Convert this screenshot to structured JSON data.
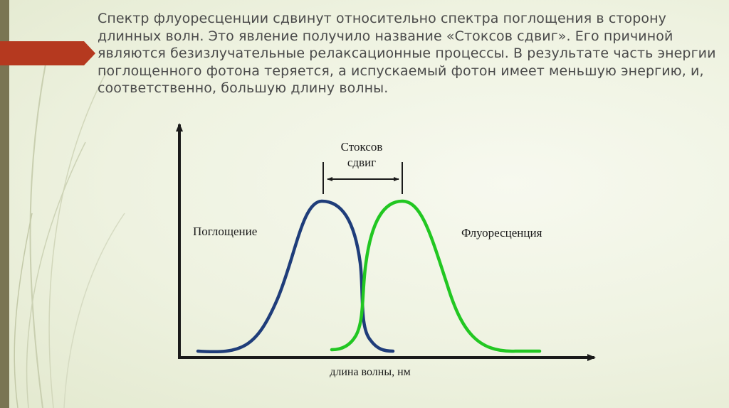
{
  "slide": {
    "paragraph": "Спектр флуоресценции сдвинут относительно спектра поглощения в сторону длинных волн. Это явление получило название «Стоксов сдвиг». Его причиной являются безизлучательные релаксационные процессы. В результате часть энергии поглощенного фотона теряется, а испускаемый фотон имеет меньшую энергию, и, соответственно, большую длину волны."
  },
  "diagram": {
    "shift_label_line1": "Стоксов",
    "shift_label_line2": "сдвиг",
    "absorption_label": "Поглощение",
    "fluorescence_label": "Флуоресценция",
    "x_axis_label": "длина волны, нм",
    "colors": {
      "absorption": "#1f3d7a",
      "fluorescence": "#22c722",
      "axis": "#1a1a1a",
      "accent": "#b5391f",
      "side_bar": "#7a7553"
    }
  }
}
